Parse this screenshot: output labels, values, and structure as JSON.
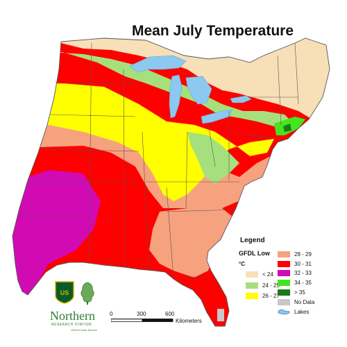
{
  "title": "Mean July Temperature",
  "legend": {
    "heading": "Legend",
    "model": "GFDL Low",
    "unit": "°C",
    "items": [
      {
        "label": "< 24",
        "color": "#f7dfb8"
      },
      {
        "label": "24 - 25",
        "color": "#a5e07c"
      },
      {
        "label": "26 - 27",
        "color": "#ffff00"
      },
      {
        "label": "28 - 29",
        "color": "#f7a27f"
      },
      {
        "label": "30 - 31",
        "color": "#ff0000"
      },
      {
        "label": "32 - 33",
        "color": "#d20ab4"
      },
      {
        "label": "34 - 35",
        "color": "#44e51f"
      },
      {
        "label": "> 35",
        "color": "#1a7a1a"
      },
      {
        "label": "No Data",
        "color": "#c8c8c8"
      },
      {
        "label": "Lakes",
        "color": "#8cc8f0"
      }
    ]
  },
  "scale": {
    "ticks": [
      "0",
      "300",
      "600"
    ],
    "unit": "Kilometers"
  },
  "logo": {
    "name": "Northern",
    "subtitle": "RESEARCH STATION",
    "agency": "USDA Forest Service",
    "shield_text": "US"
  },
  "colors": {
    "border": "#555555",
    "lakes": "#8cc8f0",
    "band_lt24": "#f7dfb8",
    "band_24_25": "#a5e07c",
    "band_26_27": "#ffff00",
    "band_28_29": "#f7a27f",
    "band_30_31": "#ff0000",
    "band_32_33": "#d20ab4",
    "band_34_35": "#44e51f",
    "band_gt35": "#1a7a1a",
    "no_data": "#c8c8c8"
  }
}
